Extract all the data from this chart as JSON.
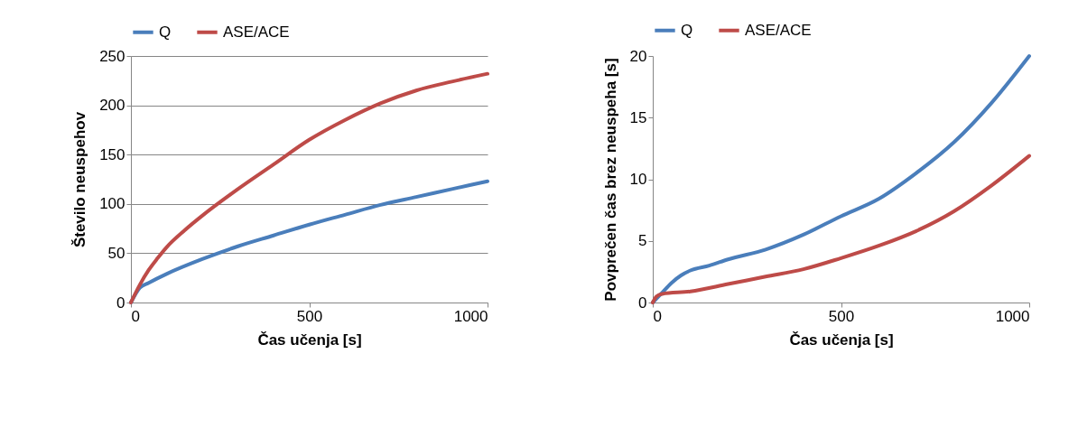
{
  "chart_data": [
    {
      "type": "line",
      "xlabel": "Čas učenja [s]",
      "ylabel": "Število neuspehov",
      "xlim": [
        0,
        1000
      ],
      "xticks": [
        0,
        500,
        1000
      ],
      "ylim": [
        0,
        250
      ],
      "yticks": [
        0,
        50,
        100,
        150,
        200,
        250
      ],
      "grid": "y",
      "legend": "top",
      "series": [
        {
          "name": "Q",
          "color": "#4a7ebb",
          "x": [
            0,
            25,
            50,
            100,
            200,
            300,
            400,
            500,
            600,
            700,
            800,
            900,
            1000
          ],
          "values": [
            0,
            15,
            20,
            29,
            44,
            57,
            68,
            79,
            89,
            99,
            107,
            115,
            123
          ]
        },
        {
          "name": "ASE/ACE",
          "color": "#be4b48",
          "x": [
            0,
            25,
            50,
            75,
            100,
            150,
            200,
            300,
            400,
            500,
            600,
            700,
            800,
            900,
            1000
          ],
          "values": [
            0,
            18,
            33,
            45,
            56,
            73,
            88,
            115,
            140,
            165,
            185,
            202,
            215,
            224,
            232
          ]
        }
      ]
    },
    {
      "type": "line",
      "xlabel": "Čas učenja [s]",
      "ylabel": "Povprečen čas brez neuspeha [s]",
      "xlim": [
        0,
        1000
      ],
      "xticks": [
        0,
        500,
        1000
      ],
      "ylim": [
        0,
        20
      ],
      "yticks": [
        0,
        5,
        10,
        15,
        20
      ],
      "legend": "top",
      "series": [
        {
          "name": "Q",
          "color": "#4a7ebb",
          "x": [
            0,
            25,
            50,
            75,
            100,
            150,
            200,
            300,
            400,
            500,
            600,
            700,
            800,
            900,
            1000
          ],
          "values": [
            0,
            0.8,
            1.6,
            2.2,
            2.6,
            3.0,
            3.5,
            4.3,
            5.5,
            7.0,
            8.4,
            10.5,
            13.0,
            16.2,
            20
          ]
        },
        {
          "name": "ASE/ACE",
          "color": "#be4b48",
          "x": [
            0,
            10,
            25,
            100,
            200,
            300,
            400,
            500,
            600,
            700,
            800,
            900,
            1000
          ],
          "values": [
            0,
            0.5,
            0.7,
            0.9,
            1.5,
            2.1,
            2.7,
            3.6,
            4.6,
            5.8,
            7.4,
            9.5,
            11.9
          ]
        }
      ]
    }
  ]
}
